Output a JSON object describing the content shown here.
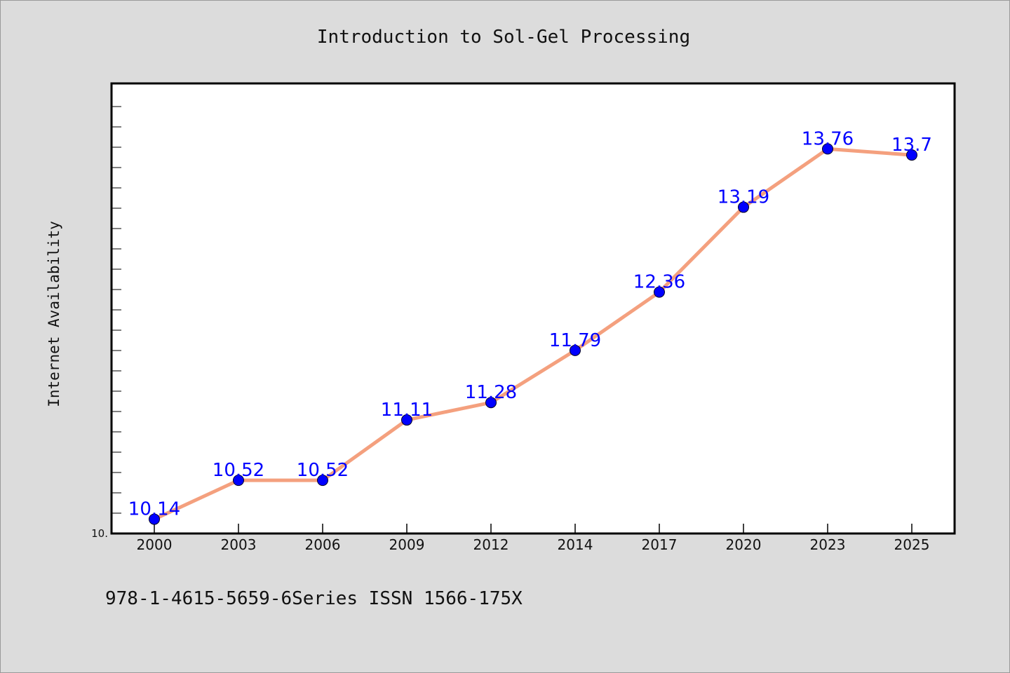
{
  "chart_data": {
    "type": "line",
    "title": "Introduction to Sol-Gel Processing",
    "xlabel": "",
    "ylabel": "Internet Availability",
    "categories": [
      "2000",
      "2003",
      "2006",
      "2009",
      "2012",
      "2014",
      "2017",
      "2020",
      "2023",
      "2025"
    ],
    "series": [
      {
        "values": [
          10.14,
          10.52,
          10.52,
          11.11,
          11.28,
          11.79,
          12.36,
          13.19,
          13.76,
          13.7
        ],
        "labels": [
          "10.14",
          "10.52",
          "10.52",
          "11.11",
          "11.28",
          "11.79",
          "12.36",
          "13.19",
          "13.76",
          "13.7"
        ]
      }
    ],
    "ylim": [
      10.0,
      14.4
    ],
    "ytick_labels": [
      {
        "value": 10.0,
        "label": "10."
      }
    ],
    "colors": {
      "line": "#f4a07e",
      "marker": "#0000ff",
      "data_label": "#0000ff"
    },
    "grid": false,
    "legend": "none"
  },
  "footer": {
    "text": "978-1-4615-5659-6Series ISSN 1566-175X"
  }
}
